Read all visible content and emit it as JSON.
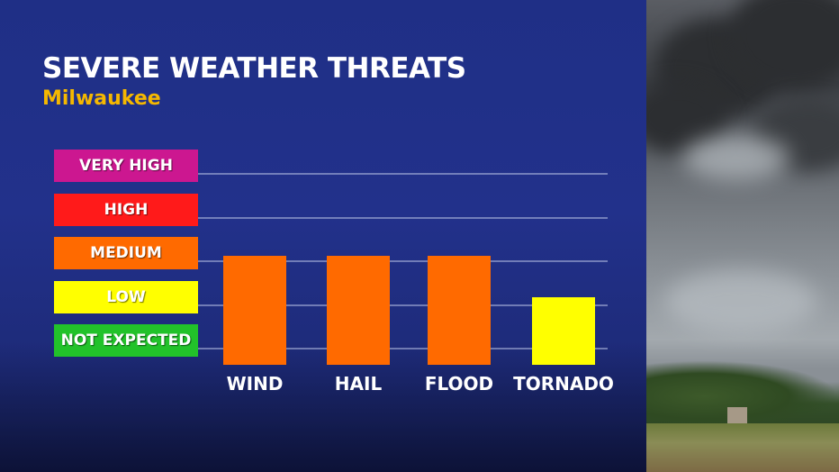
{
  "title": "SEVERE WEATHER THREATS",
  "subtitle": "Milwaukee",
  "chart_data": {
    "type": "bar",
    "title": "SEVERE WEATHER THREATS",
    "subtitle": "Milwaukee",
    "levels": [
      {
        "label": "NOT EXPECTED",
        "color": "#22c22a"
      },
      {
        "label": "LOW",
        "color": "#ffff00"
      },
      {
        "label": "MEDIUM",
        "color": "#ff6a00"
      },
      {
        "label": "HIGH",
        "color": "#ff1a1a"
      },
      {
        "label": "VERY HIGH",
        "color": "#cc1790"
      }
    ],
    "categories": [
      "WIND",
      "HAIL",
      "FLOOD",
      "TORNADO"
    ],
    "values": [
      "MEDIUM",
      "MEDIUM",
      "MEDIUM",
      "LOW"
    ],
    "value_colors": [
      "#ff6a00",
      "#ff6a00",
      "#ff6a00",
      "#ffff00"
    ],
    "grid": true
  }
}
